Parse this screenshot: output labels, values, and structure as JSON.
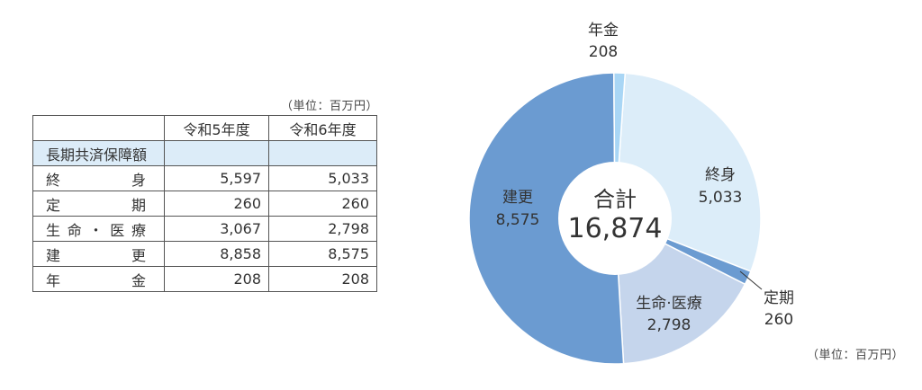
{
  "table": {
    "unit": "（単位：百万円）",
    "headers": [
      "",
      "令和5年度",
      "令和6年度"
    ],
    "section_label": "長期共済保障額",
    "rows": [
      {
        "label": "終身",
        "fy5": "5,597",
        "fy6": "5,033"
      },
      {
        "label": "定期",
        "fy5": "260",
        "fy6": "260"
      },
      {
        "label": "生命・医療",
        "fy5": "3,067",
        "fy6": "2,798"
      },
      {
        "label": "建更",
        "fy5": "8,858",
        "fy6": "8,575"
      },
      {
        "label": "年金",
        "fy5": "208",
        "fy6": "208"
      }
    ]
  },
  "chart_data": {
    "type": "pie",
    "variant": "donut",
    "center_label": "合計",
    "center_value": "16,874",
    "total": 16874,
    "unit": "（単位：百万円）",
    "slices": [
      {
        "name": "終身",
        "value": 5033,
        "label": "5,033",
        "color": "#dcedf9"
      },
      {
        "name": "定期",
        "value": 260,
        "label": "260",
        "color": "#6b9bd1"
      },
      {
        "name": "生命·医療",
        "value": 2798,
        "label": "2,798",
        "color": "#c5d5ec"
      },
      {
        "name": "建更",
        "value": 8575,
        "label": "8,575",
        "color": "#6b9bd1"
      },
      {
        "name": "年金",
        "value": 208,
        "label": "208",
        "color": "#a9d6f5"
      }
    ]
  }
}
